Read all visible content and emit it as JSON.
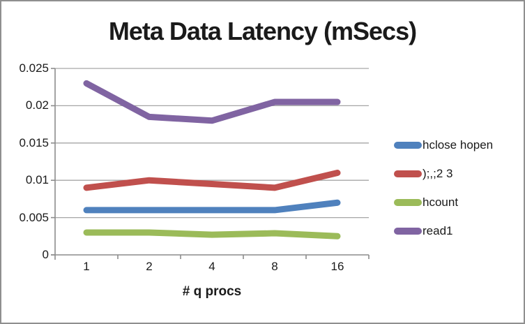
{
  "chart_data": {
    "type": "line",
    "title": "Meta Data Latency (mSecs)",
    "xlabel": "# q procs",
    "ylabel": "",
    "x_categories": [
      "1",
      "2",
      "4",
      "8",
      "16"
    ],
    "y_tick_values": [
      0,
      0.005,
      0.01,
      0.015,
      0.02,
      0.025
    ],
    "y_tick_labels": [
      "0",
      "0.005",
      "0.01",
      "0.015",
      "0.02",
      "0.025"
    ],
    "ylim": [
      0,
      0.025
    ],
    "grid": true,
    "legend_position": "right",
    "series": [
      {
        "name": "hclose hopen",
        "color": "#4F81BD",
        "values": [
          0.006,
          0.006,
          0.006,
          0.006,
          0.007
        ]
      },
      {
        "name": ");,;2 3",
        "color": "#C0504D",
        "values": [
          0.009,
          0.01,
          0.0095,
          0.009,
          0.011
        ]
      },
      {
        "name": "hcount",
        "color": "#9BBB59",
        "values": [
          0.003,
          0.003,
          0.0027,
          0.0029,
          0.0025
        ]
      },
      {
        "name": "read1",
        "color": "#8064A2",
        "values": [
          0.023,
          0.0185,
          0.018,
          0.0205,
          0.0205
        ]
      }
    ]
  },
  "colors": {
    "gridline": "#A6A6A6",
    "axis": "#8C8C8C",
    "frame_border": "#8F8F8F",
    "text": "#1A1A1A",
    "background": "#FFFFFF"
  }
}
